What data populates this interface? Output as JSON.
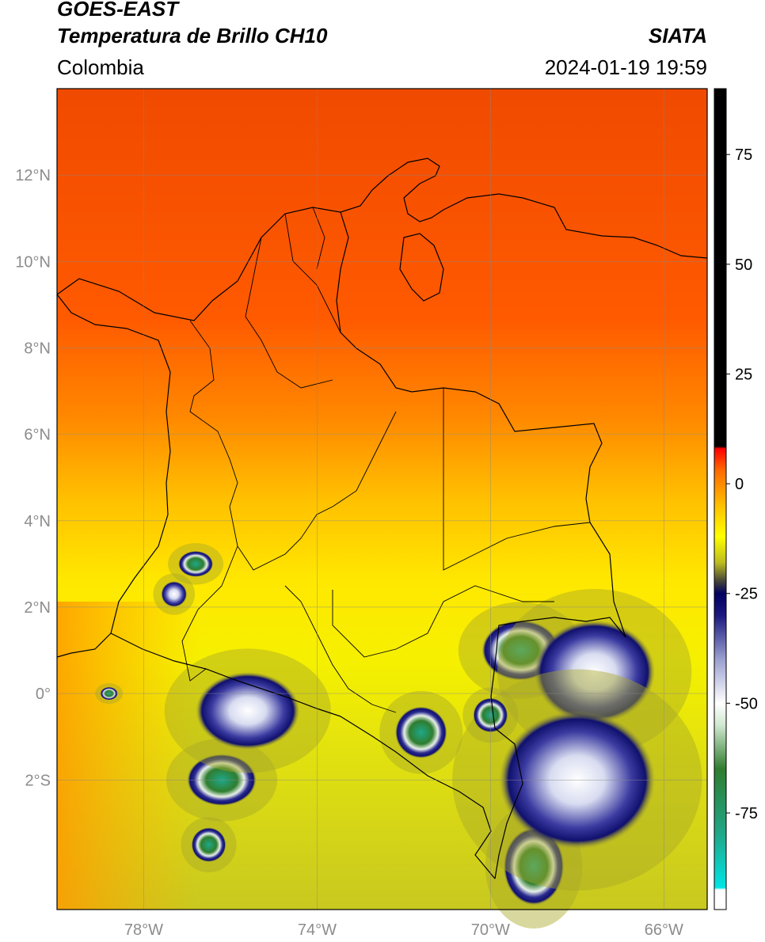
{
  "header": {
    "satellite": "GOES-EAST",
    "product": "Temperatura de Brillo CH10",
    "region": "Colombia",
    "organization": "SIATA",
    "datetime": "2024-01-19 19:59"
  },
  "map": {
    "extent": {
      "lon_min": -80,
      "lon_max": -65,
      "lat_min": -5,
      "lat_max": 14
    },
    "lat_ticks": [
      {
        "value": 12,
        "label": "12°N"
      },
      {
        "value": 10,
        "label": "10°N"
      },
      {
        "value": 8,
        "label": "8°N"
      },
      {
        "value": 6,
        "label": "6°N"
      },
      {
        "value": 4,
        "label": "4°N"
      },
      {
        "value": 2,
        "label": "2°N"
      },
      {
        "value": 0,
        "label": "0°"
      },
      {
        "value": -2,
        "label": "2°S"
      }
    ],
    "lon_ticks": [
      {
        "value": -78,
        "label": "78°W"
      },
      {
        "value": -74,
        "label": "74°W"
      },
      {
        "value": -70,
        "label": "70°W"
      },
      {
        "value": -66,
        "label": "66°W"
      }
    ],
    "cold_cloud_cells": [
      {
        "lon": -69.3,
        "lat": 1.0,
        "rx": 0.9,
        "ry": 0.7,
        "level": "very-cold"
      },
      {
        "lon": -67.6,
        "lat": 0.5,
        "rx": 1.4,
        "ry": 1.2,
        "level": "cold"
      },
      {
        "lon": -71.6,
        "lat": -0.9,
        "rx": 0.6,
        "ry": 0.6,
        "level": "very-cold"
      },
      {
        "lon": -76.2,
        "lat": -2.0,
        "rx": 0.8,
        "ry": 0.6,
        "level": "very-cold"
      },
      {
        "lon": -75.6,
        "lat": -0.4,
        "rx": 1.2,
        "ry": 0.9,
        "level": "cold"
      },
      {
        "lon": -76.8,
        "lat": 3.0,
        "rx": 0.4,
        "ry": 0.3,
        "level": "very-cold"
      },
      {
        "lon": -77.3,
        "lat": 2.3,
        "rx": 0.3,
        "ry": 0.3,
        "level": "cold"
      },
      {
        "lon": -76.5,
        "lat": -3.5,
        "rx": 0.4,
        "ry": 0.4,
        "level": "very-cold"
      },
      {
        "lon": -69.0,
        "lat": -4.0,
        "rx": 0.7,
        "ry": 0.9,
        "level": "very-cold"
      },
      {
        "lon": -68.0,
        "lat": -2.0,
        "rx": 1.8,
        "ry": 1.6,
        "level": "cold"
      },
      {
        "lon": -70.0,
        "lat": -0.5,
        "rx": 0.4,
        "ry": 0.4,
        "level": "very-cold"
      },
      {
        "lon": -78.8,
        "lat": 0.0,
        "rx": 0.2,
        "ry": 0.15,
        "level": "very-cold"
      }
    ]
  },
  "colorbar": {
    "ticks": [
      {
        "value": 75,
        "label": "75"
      },
      {
        "value": 50,
        "label": "50"
      },
      {
        "value": 25,
        "label": "25"
      },
      {
        "value": 0,
        "label": "0"
      },
      {
        "value": -25,
        "label": "-25"
      },
      {
        "value": -50,
        "label": "-50"
      },
      {
        "value": -75,
        "label": "-75"
      }
    ],
    "range": [
      -97,
      90
    ],
    "stops": [
      {
        "value": -97,
        "color": "#ffffff"
      },
      {
        "value": -92.5,
        "color": "#ffffff"
      },
      {
        "value": -92,
        "color": "#00e5e5"
      },
      {
        "value": -80,
        "color": "#1fa88a"
      },
      {
        "value": -65,
        "color": "#2f7d2f"
      },
      {
        "value": -55,
        "color": "#d0e8d0"
      },
      {
        "value": -50,
        "color": "#ffffff"
      },
      {
        "value": -40,
        "color": "#9aa0d0"
      },
      {
        "value": -30,
        "color": "#1a1a80"
      },
      {
        "value": -25,
        "color": "#000060"
      },
      {
        "value": -22,
        "color": "#4a4a38"
      },
      {
        "value": -18,
        "color": "#bcbc20"
      },
      {
        "value": -12,
        "color": "#ffff00"
      },
      {
        "value": -5,
        "color": "#ffc000"
      },
      {
        "value": 3,
        "color": "#ff6a00"
      },
      {
        "value": 8,
        "color": "#ff0000"
      },
      {
        "value": 8.5,
        "color": "#000000"
      },
      {
        "value": 90,
        "color": "#000000"
      }
    ]
  }
}
